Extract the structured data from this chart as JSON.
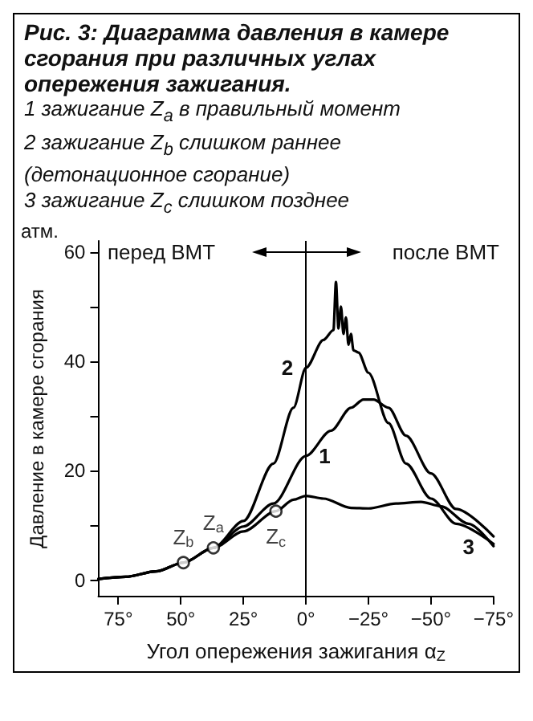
{
  "chart_data": {
    "type": "line",
    "title": "Рис. 3: Диаграмма давления в камере сгорания при различных углах опережения зажигания.",
    "subtitle": "1 зажигание Z$_{a}$ в правильный момент\n2 зажигание Z$_{b}$ слишком раннее\n(детонационное сгорание)\n3 зажигание Z$_{c}$ слишком позднее",
    "xlabel": "Угол опережения зажигания α$_{Z}$",
    "ylabel": "Давление в камере сгорания",
    "xlim": [
      83,
      -75
    ],
    "xticks": [
      {
        "value": 75,
        "label": "75°"
      },
      {
        "value": 50,
        "label": "50°"
      },
      {
        "value": 25,
        "label": "25°"
      },
      {
        "value": 0,
        "label": "0°"
      },
      {
        "value": -25,
        "label": "−25°"
      },
      {
        "value": -50,
        "label": "−50°"
      },
      {
        "value": -75,
        "label": "−75°"
      }
    ],
    "ylim": [
      -3,
      62
    ],
    "yticks": [
      0,
      {
        "value": 10,
        "label": null
      },
      20,
      {
        "value": 30,
        "label": null
      },
      40,
      {
        "value": 50,
        "label": null
      },
      60
    ],
    "grid": false,
    "marker": "none",
    "line_style": "solid",
    "series": [
      {
        "name": "1",
        "color": "#000000",
        "x": [
          83,
          72,
          60,
          49,
          37,
          25,
          13,
          0,
          -10,
          -18,
          -23,
          -27,
          -33,
          -40,
          -50,
          -60,
          -75
        ],
        "values": [
          0.2,
          0.6,
          1.6,
          3.2,
          5.9,
          9.8,
          14,
          22.7,
          27.3,
          31.5,
          33,
          33,
          31.5,
          26.4,
          19.5,
          13,
          8
        ]
      },
      {
        "name": "2",
        "color": "#000000",
        "x": [
          83,
          72,
          60,
          49,
          37,
          25,
          13,
          5,
          0,
          -7,
          -11,
          -12,
          -13,
          -14,
          -15,
          -16,
          -17,
          -18,
          -19,
          -21,
          -25,
          -33,
          -40,
          -50,
          -60,
          -75
        ],
        "values": [
          0.2,
          0.6,
          1.6,
          3.2,
          5.9,
          10.8,
          21.3,
          31.5,
          38.8,
          43.9,
          45.7,
          54.5,
          46,
          50,
          45,
          48,
          43,
          45,
          42,
          41.6,
          37.9,
          28.7,
          21.3,
          14.9,
          10.3,
          6.6
        ]
      },
      {
        "name": "3",
        "color": "#000000",
        "x": [
          83,
          72,
          60,
          49,
          37,
          25,
          12,
          5,
          0,
          -7,
          -18,
          -25,
          -36,
          -46,
          -54,
          -65,
          -75
        ],
        "values": [
          0.2,
          0.6,
          1.6,
          3.2,
          5.9,
          8.9,
          12.6,
          14.7,
          15.4,
          14.9,
          13.2,
          13.1,
          14,
          14.3,
          13.5,
          10.3,
          6.2
        ]
      },
      {
        "type": "scatter",
        "marker": "circle",
        "color": "#000000",
        "x": [
          49,
          37,
          12
        ],
        "values": [
          3.2,
          5.9,
          12.6
        ],
        "value_labels": [
          "Z$_{b}$",
          "Z$_{a}$",
          "Z$_{c}$"
        ]
      }
    ],
    "ref_lines": [
      {
        "axis": "x",
        "value": 0,
        "color": "#000000",
        "line_style": "solid"
      }
    ],
    "annotations": [
      "атм.",
      "перед ВМТ",
      "после ВМТ"
    ]
  }
}
